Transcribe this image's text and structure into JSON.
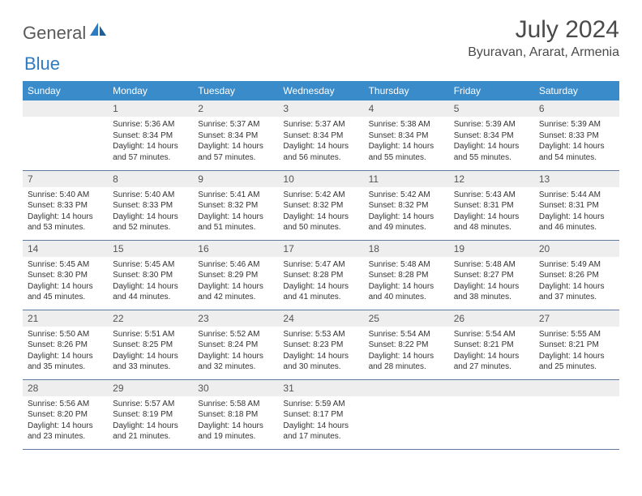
{
  "logo": {
    "text1": "General",
    "text2": "Blue"
  },
  "title": "July 2024",
  "location": "Byuravan, Ararat, Armenia",
  "colors": {
    "header_bg": "#3a8bc9",
    "header_text": "#ffffff",
    "daynum_bg": "#eeeeee",
    "border": "#5f7a9a",
    "body_text": "#333333",
    "logo_gray": "#5a5a5a",
    "logo_blue": "#2f7bbf"
  },
  "weekdays": [
    "Sunday",
    "Monday",
    "Tuesday",
    "Wednesday",
    "Thursday",
    "Friday",
    "Saturday"
  ],
  "weeks": [
    [
      {
        "n": "",
        "sr": "",
        "ss": "",
        "dl": ""
      },
      {
        "n": "1",
        "sr": "Sunrise: 5:36 AM",
        "ss": "Sunset: 8:34 PM",
        "dl": "Daylight: 14 hours and 57 minutes."
      },
      {
        "n": "2",
        "sr": "Sunrise: 5:37 AM",
        "ss": "Sunset: 8:34 PM",
        "dl": "Daylight: 14 hours and 57 minutes."
      },
      {
        "n": "3",
        "sr": "Sunrise: 5:37 AM",
        "ss": "Sunset: 8:34 PM",
        "dl": "Daylight: 14 hours and 56 minutes."
      },
      {
        "n": "4",
        "sr": "Sunrise: 5:38 AM",
        "ss": "Sunset: 8:34 PM",
        "dl": "Daylight: 14 hours and 55 minutes."
      },
      {
        "n": "5",
        "sr": "Sunrise: 5:39 AM",
        "ss": "Sunset: 8:34 PM",
        "dl": "Daylight: 14 hours and 55 minutes."
      },
      {
        "n": "6",
        "sr": "Sunrise: 5:39 AM",
        "ss": "Sunset: 8:33 PM",
        "dl": "Daylight: 14 hours and 54 minutes."
      }
    ],
    [
      {
        "n": "7",
        "sr": "Sunrise: 5:40 AM",
        "ss": "Sunset: 8:33 PM",
        "dl": "Daylight: 14 hours and 53 minutes."
      },
      {
        "n": "8",
        "sr": "Sunrise: 5:40 AM",
        "ss": "Sunset: 8:33 PM",
        "dl": "Daylight: 14 hours and 52 minutes."
      },
      {
        "n": "9",
        "sr": "Sunrise: 5:41 AM",
        "ss": "Sunset: 8:32 PM",
        "dl": "Daylight: 14 hours and 51 minutes."
      },
      {
        "n": "10",
        "sr": "Sunrise: 5:42 AM",
        "ss": "Sunset: 8:32 PM",
        "dl": "Daylight: 14 hours and 50 minutes."
      },
      {
        "n": "11",
        "sr": "Sunrise: 5:42 AM",
        "ss": "Sunset: 8:32 PM",
        "dl": "Daylight: 14 hours and 49 minutes."
      },
      {
        "n": "12",
        "sr": "Sunrise: 5:43 AM",
        "ss": "Sunset: 8:31 PM",
        "dl": "Daylight: 14 hours and 48 minutes."
      },
      {
        "n": "13",
        "sr": "Sunrise: 5:44 AM",
        "ss": "Sunset: 8:31 PM",
        "dl": "Daylight: 14 hours and 46 minutes."
      }
    ],
    [
      {
        "n": "14",
        "sr": "Sunrise: 5:45 AM",
        "ss": "Sunset: 8:30 PM",
        "dl": "Daylight: 14 hours and 45 minutes."
      },
      {
        "n": "15",
        "sr": "Sunrise: 5:45 AM",
        "ss": "Sunset: 8:30 PM",
        "dl": "Daylight: 14 hours and 44 minutes."
      },
      {
        "n": "16",
        "sr": "Sunrise: 5:46 AM",
        "ss": "Sunset: 8:29 PM",
        "dl": "Daylight: 14 hours and 42 minutes."
      },
      {
        "n": "17",
        "sr": "Sunrise: 5:47 AM",
        "ss": "Sunset: 8:28 PM",
        "dl": "Daylight: 14 hours and 41 minutes."
      },
      {
        "n": "18",
        "sr": "Sunrise: 5:48 AM",
        "ss": "Sunset: 8:28 PM",
        "dl": "Daylight: 14 hours and 40 minutes."
      },
      {
        "n": "19",
        "sr": "Sunrise: 5:48 AM",
        "ss": "Sunset: 8:27 PM",
        "dl": "Daylight: 14 hours and 38 minutes."
      },
      {
        "n": "20",
        "sr": "Sunrise: 5:49 AM",
        "ss": "Sunset: 8:26 PM",
        "dl": "Daylight: 14 hours and 37 minutes."
      }
    ],
    [
      {
        "n": "21",
        "sr": "Sunrise: 5:50 AM",
        "ss": "Sunset: 8:26 PM",
        "dl": "Daylight: 14 hours and 35 minutes."
      },
      {
        "n": "22",
        "sr": "Sunrise: 5:51 AM",
        "ss": "Sunset: 8:25 PM",
        "dl": "Daylight: 14 hours and 33 minutes."
      },
      {
        "n": "23",
        "sr": "Sunrise: 5:52 AM",
        "ss": "Sunset: 8:24 PM",
        "dl": "Daylight: 14 hours and 32 minutes."
      },
      {
        "n": "24",
        "sr": "Sunrise: 5:53 AM",
        "ss": "Sunset: 8:23 PM",
        "dl": "Daylight: 14 hours and 30 minutes."
      },
      {
        "n": "25",
        "sr": "Sunrise: 5:54 AM",
        "ss": "Sunset: 8:22 PM",
        "dl": "Daylight: 14 hours and 28 minutes."
      },
      {
        "n": "26",
        "sr": "Sunrise: 5:54 AM",
        "ss": "Sunset: 8:21 PM",
        "dl": "Daylight: 14 hours and 27 minutes."
      },
      {
        "n": "27",
        "sr": "Sunrise: 5:55 AM",
        "ss": "Sunset: 8:21 PM",
        "dl": "Daylight: 14 hours and 25 minutes."
      }
    ],
    [
      {
        "n": "28",
        "sr": "Sunrise: 5:56 AM",
        "ss": "Sunset: 8:20 PM",
        "dl": "Daylight: 14 hours and 23 minutes."
      },
      {
        "n": "29",
        "sr": "Sunrise: 5:57 AM",
        "ss": "Sunset: 8:19 PM",
        "dl": "Daylight: 14 hours and 21 minutes."
      },
      {
        "n": "30",
        "sr": "Sunrise: 5:58 AM",
        "ss": "Sunset: 8:18 PM",
        "dl": "Daylight: 14 hours and 19 minutes."
      },
      {
        "n": "31",
        "sr": "Sunrise: 5:59 AM",
        "ss": "Sunset: 8:17 PM",
        "dl": "Daylight: 14 hours and 17 minutes."
      },
      {
        "n": "",
        "sr": "",
        "ss": "",
        "dl": ""
      },
      {
        "n": "",
        "sr": "",
        "ss": "",
        "dl": ""
      },
      {
        "n": "",
        "sr": "",
        "ss": "",
        "dl": ""
      }
    ]
  ]
}
